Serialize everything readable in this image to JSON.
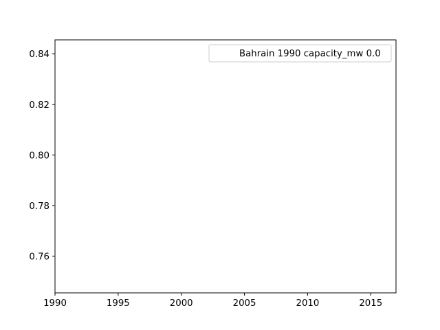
{
  "chart_data": {
    "type": "line",
    "title": "",
    "xlabel": "",
    "ylabel": "",
    "xlim": [
      1990,
      2017
    ],
    "ylim": [
      0.7455,
      0.8455
    ],
    "x_ticks": [
      1990,
      1995,
      2000,
      2005,
      2010,
      2015
    ],
    "y_ticks": [
      0.76,
      0.78,
      0.8,
      0.82,
      0.84
    ],
    "y_tick_labels": [
      "0.76",
      "0.78",
      "0.80",
      "0.82",
      "0.84"
    ],
    "grid": false,
    "legend_position": "top-right",
    "series": [
      {
        "name": "Bahrain 1990 capacity_mw 0.0",
        "x": [],
        "y": []
      }
    ]
  },
  "colors": {
    "axis": "#000000",
    "background": "#ffffff",
    "legend_border": "#cccccc"
  }
}
